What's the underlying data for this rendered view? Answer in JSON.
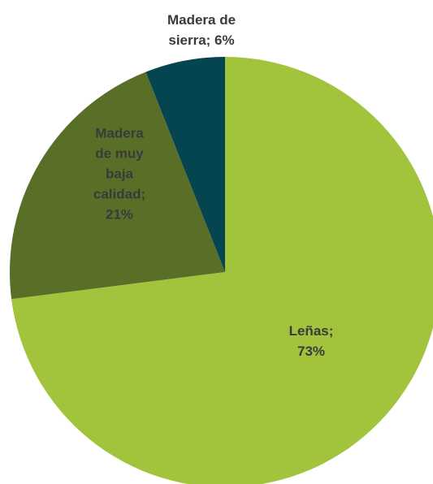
{
  "chart_data": {
    "type": "pie",
    "values": [
      73,
      21,
      6
    ],
    "value_labels": [
      "Leñas; 73%",
      "Madera de muy baja calidad; 21%",
      "Madera de sierra; 6%"
    ],
    "colors": [
      "#a2c43c",
      "#596f28",
      "#044550"
    ]
  }
}
